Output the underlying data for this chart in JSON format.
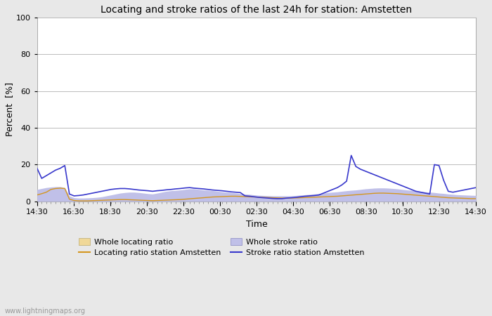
{
  "title": "Locating and stroke ratios of the last 24h for station: Amstetten",
  "xlabel": "Time",
  "ylabel": "Percent  [%]",
  "ylim": [
    0,
    100
  ],
  "yticks": [
    0,
    20,
    40,
    60,
    80,
    100
  ],
  "x_tick_labels": [
    "14:30",
    "16:30",
    "18:30",
    "20:30",
    "22:30",
    "00:30",
    "02:30",
    "04:30",
    "06:30",
    "08:30",
    "10:30",
    "12:30",
    "14:30"
  ],
  "watermark": "www.lightningmaps.org",
  "bg_color": "#e8e8e8",
  "plot_bg_color": "#ffffff",
  "locating_ratio_fill_color": "#f0d898",
  "stroke_ratio_fill_color": "#c0c0e8",
  "locating_line_color": "#d4961e",
  "stroke_line_color": "#3838cc",
  "whole_locating": [
    3.5,
    4.2,
    5.0,
    6.5,
    7.0,
    7.2,
    7.0,
    1.2,
    0.5,
    0.3,
    0.3,
    0.3,
    0.4,
    0.5,
    0.6,
    0.7,
    0.8,
    0.9,
    1.0,
    1.0,
    0.9,
    0.8,
    0.7,
    0.6,
    0.5,
    0.4,
    0.5,
    0.6,
    0.7,
    0.8,
    0.9,
    1.0,
    1.2,
    1.4,
    1.6,
    1.8,
    2.0,
    2.2,
    2.4,
    2.5,
    2.6,
    2.7,
    2.8,
    2.8,
    2.7,
    2.6,
    2.5,
    2.4,
    2.3,
    2.2,
    2.1,
    2.0,
    1.9,
    1.8,
    1.8,
    1.8,
    1.9,
    2.0,
    2.1,
    2.2,
    2.3,
    2.4,
    2.5,
    2.6,
    2.7,
    2.8,
    3.0,
    3.2,
    3.4,
    3.6,
    3.8,
    4.0,
    4.2,
    4.4,
    4.5,
    4.5,
    4.4,
    4.3,
    4.2,
    4.0,
    3.8,
    3.6,
    3.4,
    3.2,
    3.0,
    2.8,
    2.6,
    2.4,
    2.2,
    2.0,
    1.9,
    1.8,
    1.7,
    1.6,
    1.5,
    1.5
  ],
  "whole_stroke": [
    6.5,
    7.0,
    7.5,
    7.8,
    8.0,
    8.0,
    7.5,
    3.0,
    2.0,
    1.8,
    1.8,
    1.9,
    2.0,
    2.2,
    2.5,
    3.0,
    3.5,
    4.0,
    4.5,
    4.8,
    5.0,
    5.0,
    4.8,
    4.5,
    4.2,
    4.0,
    4.5,
    5.0,
    5.5,
    5.8,
    6.0,
    6.2,
    6.5,
    6.8,
    6.8,
    6.5,
    6.2,
    6.0,
    5.8,
    5.5,
    5.2,
    5.0,
    4.8,
    4.5,
    4.2,
    4.0,
    3.8,
    3.5,
    3.3,
    3.2,
    3.1,
    3.0,
    3.0,
    3.0,
    3.0,
    3.0,
    3.2,
    3.4,
    3.6,
    3.8,
    4.0,
    4.2,
    4.5,
    4.8,
    5.0,
    5.2,
    5.5,
    5.8,
    6.0,
    6.2,
    6.5,
    6.8,
    7.0,
    7.2,
    7.3,
    7.3,
    7.2,
    7.0,
    6.8,
    6.5,
    6.2,
    6.0,
    5.8,
    5.5,
    5.2,
    5.0,
    4.8,
    4.5,
    4.3,
    4.0,
    3.8,
    3.6,
    3.5,
    3.4,
    3.3,
    3.2
  ],
  "locating_station": [
    3.5,
    4.2,
    5.0,
    6.5,
    7.0,
    7.2,
    7.0,
    1.2,
    0.5,
    0.3,
    0.3,
    0.3,
    0.4,
    0.5,
    0.6,
    0.7,
    0.8,
    0.9,
    1.0,
    1.0,
    0.9,
    0.8,
    0.7,
    0.6,
    0.5,
    0.4,
    0.5,
    0.6,
    0.7,
    0.8,
    0.9,
    1.0,
    1.2,
    1.4,
    1.6,
    1.8,
    2.0,
    2.2,
    2.4,
    2.5,
    2.6,
    2.7,
    2.8,
    2.8,
    2.7,
    2.6,
    2.5,
    2.4,
    2.3,
    2.2,
    2.1,
    2.0,
    1.9,
    1.8,
    1.8,
    1.8,
    1.9,
    2.0,
    2.1,
    2.2,
    2.3,
    2.4,
    2.5,
    2.6,
    2.7,
    2.8,
    3.0,
    3.2,
    3.4,
    3.6,
    3.8,
    4.0,
    4.2,
    4.4,
    4.5,
    4.5,
    4.4,
    4.3,
    4.2,
    4.0,
    3.8,
    3.6,
    3.4,
    3.2,
    3.0,
    2.8,
    2.6,
    2.4,
    2.2,
    2.0,
    1.9,
    1.8,
    1.7,
    1.6,
    1.5,
    1.5
  ],
  "stroke_station": [
    18.0,
    12.5,
    14.0,
    15.5,
    17.0,
    18.0,
    19.5,
    4.0,
    3.0,
    3.2,
    3.5,
    4.0,
    4.5,
    5.0,
    5.5,
    6.0,
    6.5,
    6.8,
    7.0,
    7.0,
    6.8,
    6.5,
    6.2,
    6.0,
    5.8,
    5.5,
    5.8,
    6.0,
    6.3,
    6.5,
    6.8,
    7.0,
    7.3,
    7.5,
    7.2,
    7.0,
    6.8,
    6.5,
    6.2,
    6.0,
    5.8,
    5.5,
    5.2,
    5.0,
    4.8,
    3.0,
    2.8,
    2.5,
    2.2,
    2.0,
    1.8,
    1.6,
    1.5,
    1.5,
    1.8,
    2.0,
    2.2,
    2.5,
    2.8,
    3.0,
    3.2,
    3.5,
    4.5,
    5.5,
    6.5,
    7.5,
    9.0,
    11.0,
    25.0,
    19.0,
    17.5,
    16.5,
    15.5,
    14.5,
    13.5,
    12.5,
    11.5,
    10.5,
    9.5,
    8.5,
    7.5,
    6.5,
    5.5,
    5.0,
    4.5,
    4.0,
    20.0,
    19.5,
    11.5,
    5.5,
    5.0,
    5.5,
    6.0,
    6.5,
    7.0,
    7.5
  ],
  "n_points": 96
}
